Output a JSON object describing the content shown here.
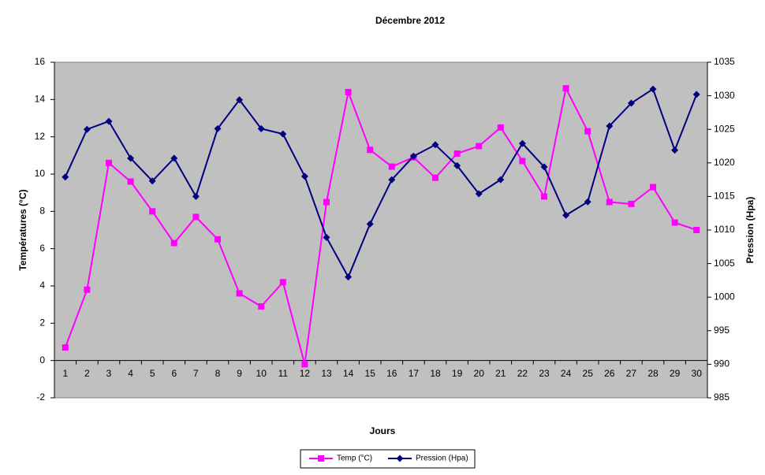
{
  "chart_data": {
    "type": "line",
    "title": "Décembre 2012",
    "x_label": "Jours",
    "y_label": "Températures (°C)",
    "y2_label": "Pression (Hpa)",
    "categories": [
      "1",
      "2",
      "3",
      "4",
      "5",
      "6",
      "7",
      "8",
      "9",
      "10",
      "11",
      "12",
      "13",
      "14",
      "15",
      "16",
      "17",
      "18",
      "19",
      "20",
      "21",
      "22",
      "23",
      "24",
      "25",
      "26",
      "27",
      "28",
      "29",
      "30"
    ],
    "series": [
      {
        "name": "Temp (°C)",
        "color": "#ff00ff",
        "marker": "square",
        "values": [
          0.7,
          3.8,
          10.6,
          9.6,
          8.0,
          6.3,
          7.7,
          6.5,
          3.6,
          2.9,
          4.2,
          -0.2,
          8.5,
          14.4,
          11.3,
          10.4,
          10.9,
          9.8,
          11.1,
          11.5,
          12.5,
          10.7,
          8.8,
          14.6,
          12.3,
          8.5,
          8.4,
          9.3,
          7.4,
          7.0
        ]
      },
      {
        "name": "Pression (Hpa)",
        "color": "#000080",
        "marker": "diamond",
        "axis": "y2",
        "values": [
          1017.9,
          1025.0,
          1026.2,
          1020.7,
          1017.3,
          1020.7,
          1015.0,
          1025.1,
          1029.4,
          1025.1,
          1024.3,
          1018.0,
          1008.9,
          1003.0,
          1010.9,
          1017.5,
          1021.0,
          1022.7,
          1019.6,
          1015.4,
          1017.5,
          1022.9,
          1019.4,
          1012.2,
          1014.2,
          1025.5,
          1028.9,
          1031.0,
          1021.9,
          1030.2
        ]
      }
    ],
    "ylim": [
      -2,
      16
    ],
    "yticks": [
      -2,
      0,
      2,
      4,
      6,
      8,
      10,
      12,
      14,
      16
    ],
    "y2lim": [
      985,
      1035
    ],
    "y2ticks": [
      985,
      990,
      995,
      1000,
      1005,
      1010,
      1015,
      1020,
      1025,
      1030,
      1035
    ],
    "plot_background": "#c0c0c0",
    "grid": false,
    "legend": "bottom"
  }
}
